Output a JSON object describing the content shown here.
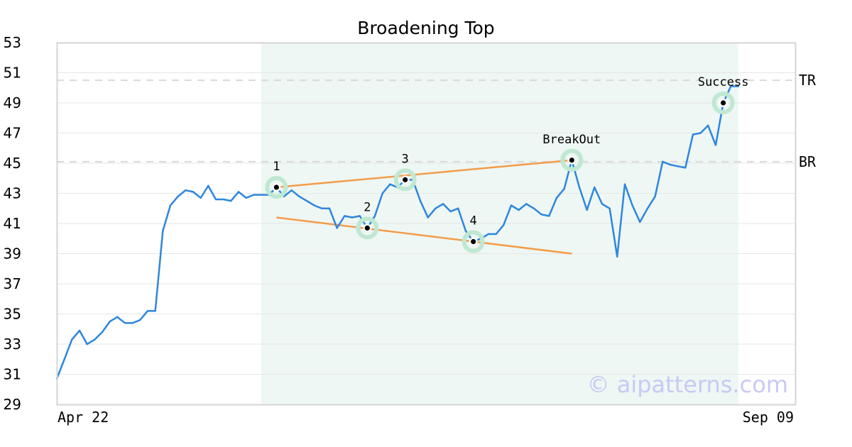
{
  "chart_data": {
    "type": "line",
    "title": "Broadening Top",
    "watermark": "© aipatterns.com",
    "x_range_labels": [
      "Apr 22",
      "Sep 09"
    ],
    "ylim": [
      29,
      53
    ],
    "yticks": [
      29,
      31,
      33,
      35,
      37,
      39,
      41,
      43,
      45,
      47,
      49,
      51,
      53
    ],
    "grid": true,
    "series": [
      {
        "color": "#2e86de",
        "values": [
          30.7,
          32.0,
          33.3,
          33.9,
          33.0,
          33.3,
          33.8,
          34.5,
          34.8,
          34.4,
          34.4,
          34.6,
          35.2,
          35.2,
          40.5,
          42.2,
          42.8,
          43.2,
          43.1,
          42.7,
          43.5,
          42.6,
          42.6,
          42.5,
          43.1,
          42.7,
          42.9,
          42.9,
          42.9,
          43.4,
          42.8,
          43.2,
          42.8,
          42.5,
          42.2,
          42.0,
          42.0,
          40.7,
          41.5,
          41.4,
          41.5,
          40.7,
          41.5,
          43.0,
          43.6,
          43.4,
          43.9,
          43.9,
          42.5,
          41.4,
          42.0,
          42.3,
          41.8,
          42.0,
          40.5,
          39.8,
          40.0,
          40.3,
          40.3,
          40.9,
          42.2,
          41.9,
          42.3,
          42.0,
          41.6,
          41.5,
          42.7,
          43.3,
          45.2,
          43.4,
          41.9,
          43.4,
          42.3,
          42.0,
          38.8,
          43.6,
          42.2,
          41.1,
          42.0,
          42.8,
          45.1,
          44.9,
          44.8,
          44.7,
          46.9,
          47.0,
          47.5,
          46.2,
          49.0,
          50.1,
          50.1
        ]
      }
    ],
    "pattern_region": {
      "start_index": 27,
      "end_index": 90
    },
    "annotations": [
      {
        "label": "1",
        "index": 29,
        "value": 43.4
      },
      {
        "label": "2",
        "index": 41,
        "value": 40.7
      },
      {
        "label": "3",
        "index": 46,
        "value": 43.9
      },
      {
        "label": "4",
        "index": 55,
        "value": 39.8
      },
      {
        "label": "BreakOut",
        "index": 68,
        "value": 45.2
      },
      {
        "label": "Success",
        "index": 88,
        "value": 49.0
      }
    ],
    "trendlines": [
      {
        "from": {
          "index": 29,
          "value": 43.4
        },
        "to": {
          "index": 68,
          "value": 45.2
        }
      },
      {
        "from": {
          "index": 29,
          "value": 41.4
        },
        "to": {
          "index": 68,
          "value": 39.0
        }
      }
    ],
    "levels": [
      {
        "label": "TR",
        "value": 50.5
      },
      {
        "label": "BR",
        "value": 45.1
      }
    ],
    "colors": {
      "line": "#2e86de",
      "trendline": "#f39c4a",
      "region": "#eef7f3",
      "marker_ring": "#bfe8d3",
      "level_line": "#d9d9d9",
      "grid": "#e6e6e6",
      "frame": "#d4d4d4"
    }
  }
}
